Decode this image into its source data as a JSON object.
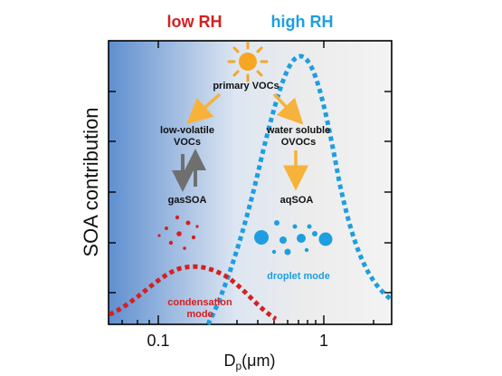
{
  "header": {
    "low_rh": "low RH",
    "high_rh": "high RH"
  },
  "axes": {
    "ylabel": "SOA contribution",
    "xlabel_main": "D",
    "xlabel_sub": "p",
    "xlabel_unit": "(μm)",
    "x_ticks": [
      "0.1",
      "1"
    ]
  },
  "nodes": {
    "primary": "primary VOCs",
    "low_volatile_line1": "low-volatile",
    "low_volatile_line2": "VOCs",
    "water_soluble_line1": "water soluble",
    "water_soluble_line2": "OVOCs",
    "gas_soa": "gasSOA",
    "aq_soa": "aqSOA"
  },
  "modes": {
    "droplet": "droplet mode",
    "condensation_line1": "condensation",
    "condensation_line2": "mode"
  },
  "colors": {
    "low_rh": "#d42020",
    "high_rh": "#1e9ee0",
    "arrow": "#f6b23a",
    "gray_arrow": "#6f6f6f",
    "sun": "#f6a623"
  }
}
